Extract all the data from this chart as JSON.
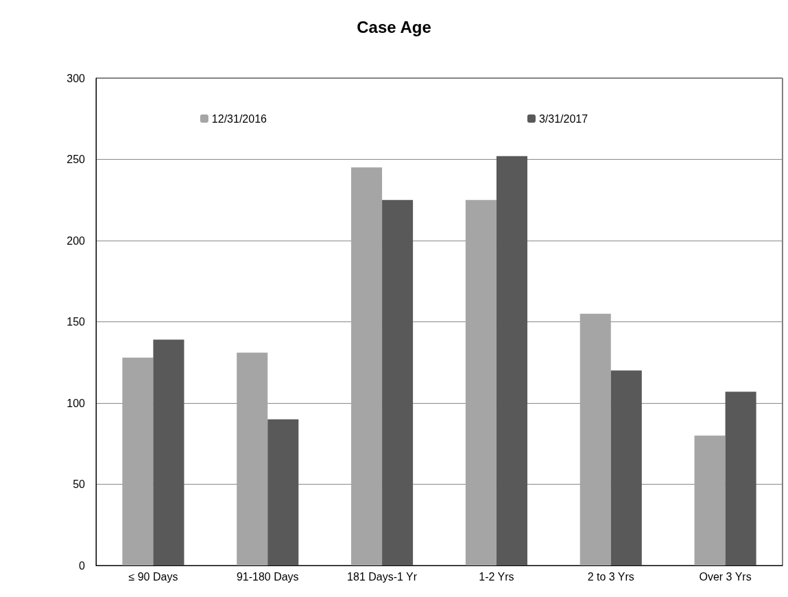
{
  "chart_data": {
    "type": "bar",
    "title": "Case Age",
    "categories": [
      "≤ 90 Days",
      "91-180 Days",
      "181 Days-1 Yr",
      "1-2 Yrs",
      "2 to 3 Yrs",
      "Over 3 Yrs"
    ],
    "series": [
      {
        "name": "12/31/2016",
        "color": "#a5a5a5",
        "values": [
          128,
          131,
          245,
          225,
          155,
          80
        ]
      },
      {
        "name": "3/31/2017",
        "color": "#595959",
        "values": [
          139,
          90,
          225,
          252,
          120,
          107
        ]
      }
    ],
    "ylim": [
      0,
      300
    ],
    "yticks": [
      0,
      50,
      100,
      150,
      200,
      250,
      300
    ],
    "grid": "y",
    "legend": "top"
  }
}
